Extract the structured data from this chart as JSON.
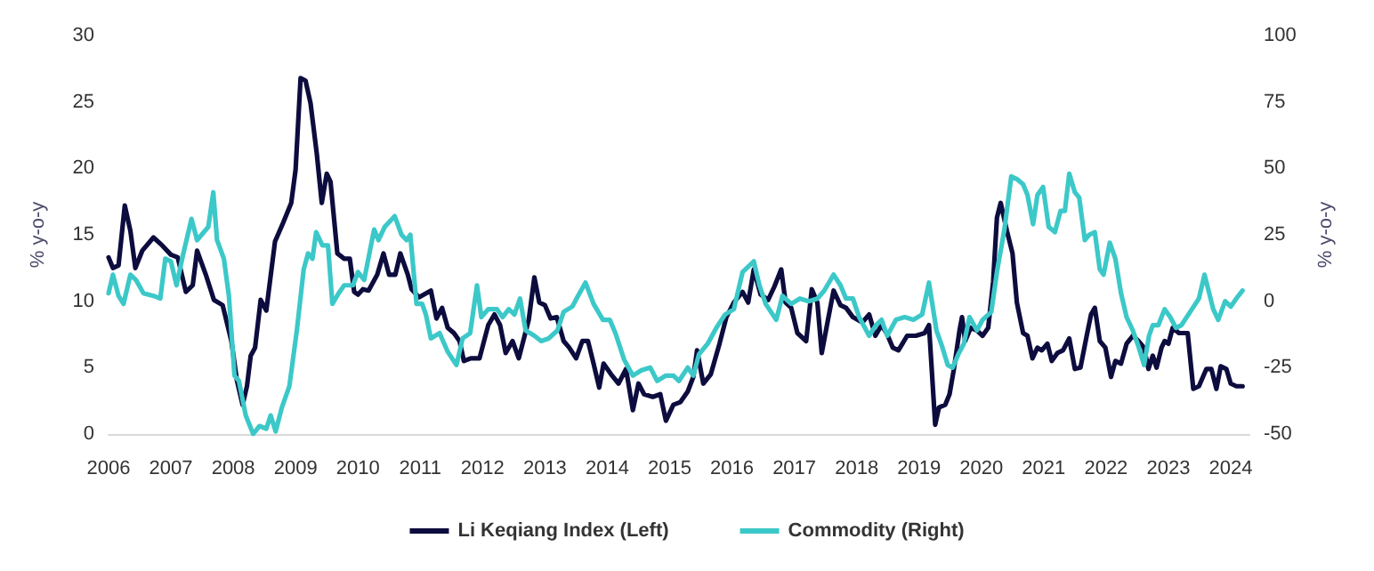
{
  "chart_data": {
    "type": "line",
    "ylabel": "% y-o-y",
    "y2label": "% y-o-y",
    "xlim": [
      2006,
      2024.3
    ],
    "xticks": [
      2006,
      2007,
      2008,
      2009,
      2010,
      2011,
      2012,
      2013,
      2014,
      2015,
      2016,
      2017,
      2018,
      2019,
      2020,
      2021,
      2022,
      2023,
      2024
    ],
    "ylim": [
      0,
      30
    ],
    "yticks": [
      0,
      5,
      10,
      15,
      20,
      25,
      30
    ],
    "y2lim": [
      -50,
      100
    ],
    "y2ticks": [
      -50,
      -25,
      0,
      25,
      50,
      75,
      100
    ],
    "grid": false,
    "legend": "bottom",
    "marker": "none",
    "line_style": "solid",
    "series": [
      {
        "name": "Li Keqiang Index (Left)",
        "color": "#0d0c3e",
        "x": [
          2006.0,
          2006.07,
          2006.16,
          2006.26,
          2006.35,
          2006.43,
          2006.54,
          2006.72,
          2006.86,
          2007.0,
          2007.11,
          2007.24,
          2007.35,
          2007.42,
          2007.56,
          2007.69,
          2007.83,
          2007.97,
          2008.06,
          2008.15,
          2008.22,
          2008.28,
          2008.35,
          2008.44,
          2008.53,
          2008.67,
          2008.8,
          2008.93,
          2009.0,
          2009.08,
          2009.16,
          2009.24,
          2009.34,
          2009.42,
          2009.5,
          2009.56,
          2009.67,
          2009.78,
          2009.87,
          2009.94,
          2010.0,
          2010.08,
          2010.17,
          2010.31,
          2010.41,
          2010.5,
          2010.6,
          2010.68,
          2010.8,
          2010.86,
          2010.98,
          2011.17,
          2011.26,
          2011.35,
          2011.44,
          2011.54,
          2011.63,
          2011.7,
          2011.81,
          2011.95,
          2012.09,
          2012.19,
          2012.28,
          2012.37,
          2012.48,
          2012.58,
          2012.74,
          2012.83,
          2012.91,
          2013.0,
          2013.09,
          2013.19,
          2013.3,
          2013.39,
          2013.5,
          2013.6,
          2013.69,
          2013.78,
          2013.87,
          2013.94,
          2014.06,
          2014.18,
          2014.3,
          2014.41,
          2014.5,
          2014.59,
          2014.73,
          2014.85,
          2014.94,
          2015.06,
          2015.17,
          2015.29,
          2015.38,
          2015.44,
          2015.54,
          2015.66,
          2015.8,
          2015.91,
          2016.03,
          2016.17,
          2016.26,
          2016.35,
          2016.46,
          2016.58,
          2016.68,
          2016.79,
          2016.86,
          2016.95,
          2017.05,
          2017.19,
          2017.28,
          2017.37,
          2017.44,
          2017.54,
          2017.63,
          2017.74,
          2017.83,
          2017.94,
          2018.09,
          2018.2,
          2018.3,
          2018.4,
          2018.49,
          2018.58,
          2018.67,
          2018.81,
          2018.95,
          2019.09,
          2019.16,
          2019.26,
          2019.32,
          2019.42,
          2019.49,
          2019.56,
          2019.65,
          2019.69,
          2019.74,
          2019.83,
          2019.93,
          2020.02,
          2020.11,
          2020.19,
          2020.25,
          2020.31,
          2020.41,
          2020.5,
          2020.57,
          2020.67,
          2020.74,
          2020.82,
          2020.9,
          2020.97,
          2021.06,
          2021.13,
          2021.22,
          2021.31,
          2021.41,
          2021.5,
          2021.59,
          2021.69,
          2021.76,
          2021.82,
          2021.9,
          2021.99,
          2022.08,
          2022.15,
          2022.24,
          2022.33,
          2022.43,
          2022.52,
          2022.61,
          2022.68,
          2022.75,
          2022.81,
          2022.89,
          2022.94,
          2023.0,
          2023.07,
          2023.17,
          2023.31,
          2023.4,
          2023.49,
          2023.61,
          2023.69,
          2023.77,
          2023.84,
          2023.93,
          2024.0,
          2024.09,
          2024.19
        ],
        "values": [
          13.3,
          12.5,
          12.7,
          17.2,
          15.3,
          12.5,
          13.8,
          14.8,
          14.2,
          13.5,
          13.3,
          10.7,
          11.2,
          13.8,
          12.0,
          10.1,
          9.7,
          7.0,
          4.0,
          2.2,
          3.6,
          5.9,
          6.5,
          10.1,
          9.3,
          14.5,
          15.9,
          17.4,
          19.9,
          26.8,
          26.6,
          24.9,
          21.1,
          17.4,
          19.6,
          19.0,
          13.6,
          13.2,
          13.2,
          10.7,
          10.5,
          10.9,
          10.8,
          12.0,
          13.6,
          12.0,
          12.0,
          13.6,
          12.0,
          10.9,
          10.3,
          10.8,
          8.7,
          9.5,
          8.0,
          7.6,
          7.0,
          5.5,
          5.7,
          5.7,
          8.2,
          9.0,
          8.2,
          6.1,
          7.0,
          5.7,
          8.6,
          11.8,
          9.9,
          9.7,
          8.7,
          8.8,
          7.0,
          6.5,
          5.7,
          7.0,
          7.0,
          5.3,
          3.5,
          5.3,
          4.5,
          3.8,
          4.9,
          1.8,
          3.8,
          3.0,
          2.8,
          3.0,
          1.0,
          2.2,
          2.4,
          3.2,
          4.3,
          6.3,
          3.8,
          4.5,
          6.8,
          8.8,
          9.9,
          10.7,
          9.9,
          12.4,
          10.5,
          10.1,
          11.1,
          12.4,
          9.9,
          9.5,
          7.6,
          7.0,
          10.9,
          9.9,
          6.1,
          8.6,
          10.8,
          9.7,
          9.5,
          8.8,
          8.4,
          9.0,
          7.4,
          8.2,
          7.5,
          6.5,
          6.3,
          7.4,
          7.4,
          7.6,
          8.2,
          0.7,
          2.0,
          2.2,
          3.0,
          4.9,
          7.8,
          8.8,
          7.0,
          8.0,
          7.8,
          7.4,
          8.0,
          11.5,
          16.3,
          17.4,
          15.3,
          13.6,
          9.9,
          7.6,
          7.4,
          5.7,
          6.5,
          6.3,
          6.8,
          5.5,
          6.1,
          6.3,
          7.2,
          4.9,
          5.0,
          7.4,
          9.0,
          9.5,
          7.0,
          6.5,
          4.3,
          5.5,
          5.3,
          6.8,
          7.4,
          7.0,
          6.5,
          4.9,
          5.9,
          5.0,
          6.5,
          7.0,
          6.8,
          8.0,
          7.6,
          7.6,
          3.4,
          3.6,
          4.9,
          4.9,
          3.4,
          5.1,
          4.9,
          3.8,
          3.6,
          3.6
        ]
      },
      {
        "name": "Commodity (Right)",
        "color": "#3cc8c8",
        "axis": "y2",
        "x": [
          2006.0,
          2006.07,
          2006.16,
          2006.24,
          2006.35,
          2006.44,
          2006.56,
          2006.72,
          2006.83,
          2006.91,
          2007.0,
          2007.09,
          2007.19,
          2007.33,
          2007.42,
          2007.6,
          2007.68,
          2007.74,
          2007.85,
          2007.93,
          2008.02,
          2008.09,
          2008.2,
          2008.32,
          2008.42,
          2008.53,
          2008.6,
          2008.68,
          2008.78,
          2008.9,
          2009.02,
          2009.13,
          2009.2,
          2009.27,
          2009.33,
          2009.43,
          2009.52,
          2009.59,
          2009.69,
          2009.78,
          2009.92,
          2010.0,
          2010.1,
          2010.26,
          2010.33,
          2010.43,
          2010.59,
          2010.7,
          2010.78,
          2010.84,
          2010.94,
          2011.03,
          2011.09,
          2011.17,
          2011.31,
          2011.44,
          2011.58,
          2011.68,
          2011.8,
          2011.91,
          2011.98,
          2012.09,
          2012.23,
          2012.32,
          2012.42,
          2012.51,
          2012.6,
          2012.69,
          2012.83,
          2012.94,
          2013.06,
          2013.2,
          2013.3,
          2013.44,
          2013.53,
          2013.65,
          2013.78,
          2013.93,
          2014.04,
          2014.13,
          2014.27,
          2014.41,
          2014.55,
          2014.69,
          2014.8,
          2014.94,
          2015.06,
          2015.15,
          2015.29,
          2015.38,
          2015.47,
          2015.61,
          2015.75,
          2015.89,
          2016.03,
          2016.17,
          2016.35,
          2016.44,
          2016.54,
          2016.71,
          2016.81,
          2016.95,
          2017.09,
          2017.23,
          2017.37,
          2017.48,
          2017.63,
          2017.74,
          2017.83,
          2017.94,
          2018.04,
          2018.2,
          2018.31,
          2018.4,
          2018.49,
          2018.63,
          2018.77,
          2018.91,
          2019.05,
          2019.16,
          2019.28,
          2019.37,
          2019.46,
          2019.54,
          2019.63,
          2019.72,
          2019.81,
          2019.93,
          2020.02,
          2020.16,
          2020.25,
          2020.37,
          2020.48,
          2020.57,
          2020.67,
          2020.74,
          2020.83,
          2020.9,
          2020.99,
          2021.08,
          2021.18,
          2021.27,
          2021.34,
          2021.41,
          2021.5,
          2021.57,
          2021.66,
          2021.73,
          2021.82,
          2021.9,
          2021.96,
          2022.06,
          2022.15,
          2022.24,
          2022.33,
          2022.43,
          2022.52,
          2022.61,
          2022.69,
          2022.75,
          2022.84,
          2022.94,
          2023.03,
          2023.12,
          2023.21,
          2023.35,
          2023.49,
          2023.58,
          2023.72,
          2023.8,
          2023.91,
          2024.0,
          2024.09,
          2024.19
        ],
        "values": [
          3,
          10,
          2,
          -1,
          10,
          8,
          3,
          2,
          1,
          16,
          15,
          6,
          17,
          31,
          23,
          28,
          41,
          23,
          16,
          2,
          -28,
          -30,
          -43,
          -50,
          -47,
          -48,
          -43,
          -49,
          -40,
          -32,
          -11,
          12,
          18,
          16,
          26,
          21,
          21,
          -1,
          3,
          6,
          6,
          11,
          8,
          27,
          23,
          28,
          32,
          25,
          23,
          25,
          -1,
          -1,
          -5,
          -14,
          -12,
          -19,
          -24,
          -14,
          -12,
          6,
          -6,
          -3,
          -3,
          -6,
          -3,
          -5,
          1,
          -11,
          -13,
          -15,
          -14,
          -11,
          -4,
          -2,
          2,
          7,
          -1,
          -7,
          -7,
          -12,
          -22,
          -28,
          -26,
          -25,
          -30,
          -28,
          -28,
          -30,
          -25,
          -28,
          -20,
          -16,
          -10,
          -5,
          -3,
          11,
          15,
          6,
          -1,
          -7,
          2,
          -1,
          1,
          0,
          1,
          4,
          10,
          6,
          1,
          1,
          -6,
          -13,
          -9,
          -7,
          -13,
          -7,
          -6,
          -7,
          -5,
          7,
          -11,
          -17,
          -24,
          -25,
          -20,
          -16,
          -6,
          -11,
          -7,
          -4,
          11,
          27,
          47,
          46,
          44,
          40,
          29,
          40,
          43,
          28,
          26,
          34,
          34,
          48,
          41,
          39,
          23,
          25,
          26,
          12,
          10,
          22,
          16,
          3,
          -6,
          -11,
          -17,
          -24,
          -13,
          -9,
          -9,
          -3,
          -6,
          -10,
          -9,
          -4,
          1,
          10,
          -3,
          -7,
          0,
          -2,
          1,
          4
        ]
      }
    ]
  }
}
